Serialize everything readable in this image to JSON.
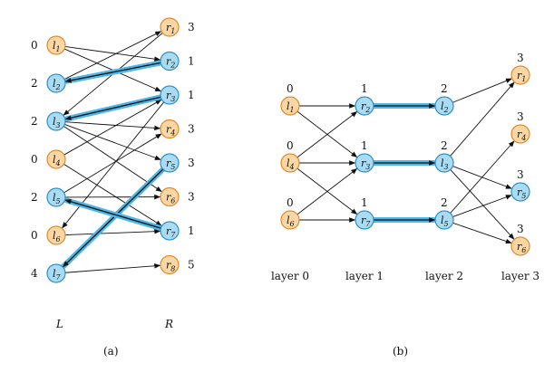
{
  "colors": {
    "orange_fill": "#fbd7a6",
    "orange_stroke": "#e08a2c",
    "blue_fill": "#a9dcf3",
    "blue_stroke": "#2f8fc5",
    "highlight": "#4fb6e8",
    "edge": "#111111"
  },
  "panel_a": {
    "caption": "(a)",
    "left_set_label": "L",
    "right_set_label": "R",
    "left_nodes": [
      {
        "id": "l1",
        "base": "l",
        "sub": "1",
        "value": "0",
        "matched": false
      },
      {
        "id": "l2",
        "base": "l",
        "sub": "2",
        "value": "2",
        "matched": true
      },
      {
        "id": "l3",
        "base": "l",
        "sub": "3",
        "value": "2",
        "matched": true
      },
      {
        "id": "l4",
        "base": "l",
        "sub": "4",
        "value": "0",
        "matched": false
      },
      {
        "id": "l5",
        "base": "l",
        "sub": "5",
        "value": "2",
        "matched": true
      },
      {
        "id": "l6",
        "base": "l",
        "sub": "6",
        "value": "0",
        "matched": false
      },
      {
        "id": "l7",
        "base": "l",
        "sub": "7",
        "value": "4",
        "matched": true
      }
    ],
    "right_nodes": [
      {
        "id": "r1",
        "base": "r",
        "sub": "1",
        "value": "3",
        "matched": false
      },
      {
        "id": "r2",
        "base": "r",
        "sub": "2",
        "value": "1",
        "matched": true
      },
      {
        "id": "r3",
        "base": "r",
        "sub": "3",
        "value": "1",
        "matched": true
      },
      {
        "id": "r4",
        "base": "r",
        "sub": "4",
        "value": "3",
        "matched": false
      },
      {
        "id": "r5",
        "base": "r",
        "sub": "5",
        "value": "3",
        "matched": true
      },
      {
        "id": "r6",
        "base": "r",
        "sub": "6",
        "value": "3",
        "matched": false
      },
      {
        "id": "r7",
        "base": "r",
        "sub": "7",
        "value": "1",
        "matched": true
      },
      {
        "id": "r8",
        "base": "r",
        "sub": "8",
        "value": "5",
        "matched": false
      }
    ],
    "edges_l_to_r": [
      [
        "l1",
        "r2"
      ],
      [
        "l1",
        "r3"
      ],
      [
        "l2",
        "r1"
      ],
      [
        "l3",
        "r4"
      ],
      [
        "l3",
        "r5"
      ],
      [
        "l3",
        "r6"
      ],
      [
        "l4",
        "r3"
      ],
      [
        "l4",
        "r7"
      ],
      [
        "l5",
        "r4"
      ],
      [
        "l5",
        "r6"
      ],
      [
        "l6",
        "r7"
      ],
      [
        "l7",
        "r8"
      ]
    ],
    "edges_r_to_l": [
      [
        "r1",
        "l3"
      ],
      [
        "r3",
        "l6"
      ]
    ],
    "matching_r_to_l": [
      [
        "r2",
        "l2"
      ],
      [
        "r3",
        "l3"
      ],
      [
        "r5",
        "l7"
      ],
      [
        "r7",
        "l5"
      ]
    ]
  },
  "panel_b": {
    "caption": "(b)",
    "layers": [
      {
        "label": "layer 0",
        "nodes": [
          {
            "id": "b_l1",
            "base": "l",
            "sub": "1",
            "value": "0",
            "kind": "orange"
          },
          {
            "id": "b_l4",
            "base": "l",
            "sub": "4",
            "value": "0",
            "kind": "orange"
          },
          {
            "id": "b_l6",
            "base": "l",
            "sub": "6",
            "value": "0",
            "kind": "orange"
          }
        ]
      },
      {
        "label": "layer 1",
        "nodes": [
          {
            "id": "b_r2",
            "base": "r",
            "sub": "2",
            "value": "1",
            "kind": "blue"
          },
          {
            "id": "b_r3",
            "base": "r",
            "sub": "3",
            "value": "1",
            "kind": "blue"
          },
          {
            "id": "b_r7",
            "base": "r",
            "sub": "7",
            "value": "1",
            "kind": "blue"
          }
        ]
      },
      {
        "label": "layer 2",
        "nodes": [
          {
            "id": "b_l2",
            "base": "l",
            "sub": "2",
            "value": "2",
            "kind": "blue"
          },
          {
            "id": "b_l3",
            "base": "l",
            "sub": "3",
            "value": "2",
            "kind": "blue"
          },
          {
            "id": "b_l5",
            "base": "l",
            "sub": "5",
            "value": "2",
            "kind": "blue"
          }
        ]
      },
      {
        "label": "layer 3",
        "nodes": [
          {
            "id": "b_r1",
            "base": "r",
            "sub": "1",
            "value": "3",
            "kind": "orange"
          },
          {
            "id": "b_r4",
            "base": "r",
            "sub": "4",
            "value": "3",
            "kind": "orange"
          },
          {
            "id": "b_r5",
            "base": "r",
            "sub": "5",
            "value": "3",
            "kind": "blue"
          },
          {
            "id": "b_r6",
            "base": "r",
            "sub": "6",
            "value": "3",
            "kind": "orange"
          }
        ]
      }
    ],
    "edges": [
      [
        "b_l1",
        "b_r2"
      ],
      [
        "b_l1",
        "b_r3"
      ],
      [
        "b_l4",
        "b_r2"
      ],
      [
        "b_l4",
        "b_r3"
      ],
      [
        "b_l4",
        "b_r7"
      ],
      [
        "b_l6",
        "b_r3"
      ],
      [
        "b_l6",
        "b_r7"
      ],
      [
        "b_l3",
        "b_r1"
      ],
      [
        "b_l3",
        "b_r5"
      ],
      [
        "b_l3",
        "b_r6"
      ],
      [
        "b_l5",
        "b_r4"
      ],
      [
        "b_l5",
        "b_r5"
      ],
      [
        "b_l5",
        "b_r6"
      ],
      [
        "b_l2",
        "b_r1"
      ]
    ],
    "matching": [
      [
        "b_r2",
        "b_l2"
      ],
      [
        "b_r3",
        "b_l3"
      ],
      [
        "b_r7",
        "b_l5"
      ]
    ]
  }
}
